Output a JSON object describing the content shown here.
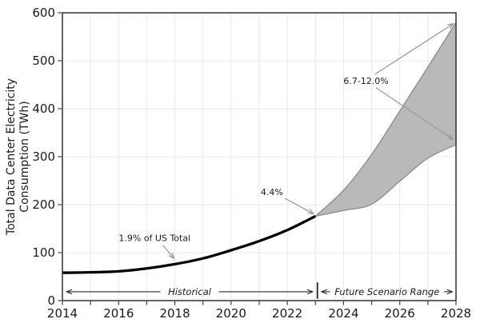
{
  "colors": {
    "background": "#ffffff",
    "historical_line": "#000000",
    "region_fill": "#b9b9b9",
    "region_edge": "#8f8f8f",
    "grid": "#e9e9e9",
    "spine": "#3d3d3d",
    "tick_label": "#1a1a1a",
    "annotation_arrow": "#969696",
    "span_arrow": "#2c2c2c"
  },
  "chart_data": {
    "type": "line",
    "title": "",
    "xlabel": "",
    "ylabel": "Total Data Center Electricity Consumption (TWh)",
    "ylabel_lines": [
      "Total Data Center Electricity",
      "Consumption (TWh)"
    ],
    "xlim": [
      2014,
      2028
    ],
    "ylim": [
      0,
      600
    ],
    "grid": "on",
    "legend": "none",
    "x_ticks": [
      2014,
      2015,
      2016,
      2017,
      2018,
      2019,
      2020,
      2021,
      2022,
      2023,
      2024,
      2025,
      2026,
      2027,
      2028
    ],
    "x_tick_labels": [
      {
        "year": 2014,
        "label": "2014"
      },
      {
        "year": 2016,
        "label": "2016"
      },
      {
        "year": 2018,
        "label": "2018"
      },
      {
        "year": 2020,
        "label": "2020"
      },
      {
        "year": 2022,
        "label": "2022"
      },
      {
        "year": 2024,
        "label": "2024"
      },
      {
        "year": 2026,
        "label": "2026"
      },
      {
        "year": 2028,
        "label": "2028"
      }
    ],
    "y_ticks": [
      {
        "value": 0,
        "label": "0"
      },
      {
        "value": 100,
        "label": "100"
      },
      {
        "value": 200,
        "label": "200"
      },
      {
        "value": 300,
        "label": "300"
      },
      {
        "value": 400,
        "label": "400"
      },
      {
        "value": 500,
        "label": "500"
      },
      {
        "value": 600,
        "label": "600"
      }
    ],
    "series": [
      {
        "name": "Historical consumption",
        "style": "thick-black-line",
        "x": [
          2014,
          2015,
          2016,
          2017,
          2018,
          2019,
          2020,
          2021,
          2022,
          2023
        ],
        "y": [
          58,
          59,
          61,
          67,
          76,
          88,
          105,
          124,
          147,
          176
        ]
      },
      {
        "name": "Future scenario upper bound",
        "style": "band-edge",
        "x": [
          2023,
          2024,
          2025,
          2026,
          2027,
          2028
        ],
        "y": [
          176,
          230,
          305,
          395,
          487,
          580
        ]
      },
      {
        "name": "Future scenario lower bound",
        "style": "band-edge",
        "x": [
          2023,
          2024,
          2025,
          2026,
          2027,
          2028
        ],
        "y": [
          176,
          188,
          201,
          249,
          297,
          325
        ]
      }
    ],
    "band": {
      "between": [
        "Future scenario upper bound",
        "Future scenario lower bound"
      ],
      "x_range": [
        2023,
        2028
      ],
      "value_range_2028": [
        325,
        580
      ]
    },
    "annotations": [
      {
        "text": "1.9% of US Total",
        "x": 2017.28,
        "y": 131,
        "arrows": [
          {
            "x1": 2017.58,
            "y1": 115,
            "x2": 2017.97,
            "y2": 88
          }
        ]
      },
      {
        "text": "4.4%",
        "x": 2021.45,
        "y": 227,
        "arrows": [
          {
            "x1": 2021.92,
            "y1": 213,
            "x2": 2022.93,
            "y2": 181
          }
        ]
      },
      {
        "text": "6.7-12.0%",
        "x": 2024.8,
        "y": 458,
        "arrows": [
          {
            "x1": 2025.12,
            "y1": 472,
            "x2": 2027.9,
            "y2": 577
          },
          {
            "x1": 2025.15,
            "y1": 444,
            "x2": 2027.9,
            "y2": 336
          }
        ]
      }
    ],
    "span_labels": [
      {
        "text": "Historical",
        "x_start": 2014.15,
        "x_end": 2022.9,
        "y": 18.5
      },
      {
        "text": "Future Scenario Range",
        "x_start": 2023.22,
        "x_end": 2027.87,
        "y": 18.5
      }
    ],
    "divider": {
      "x": 2023.07,
      "y_start": 4,
      "y_end": 38
    }
  }
}
